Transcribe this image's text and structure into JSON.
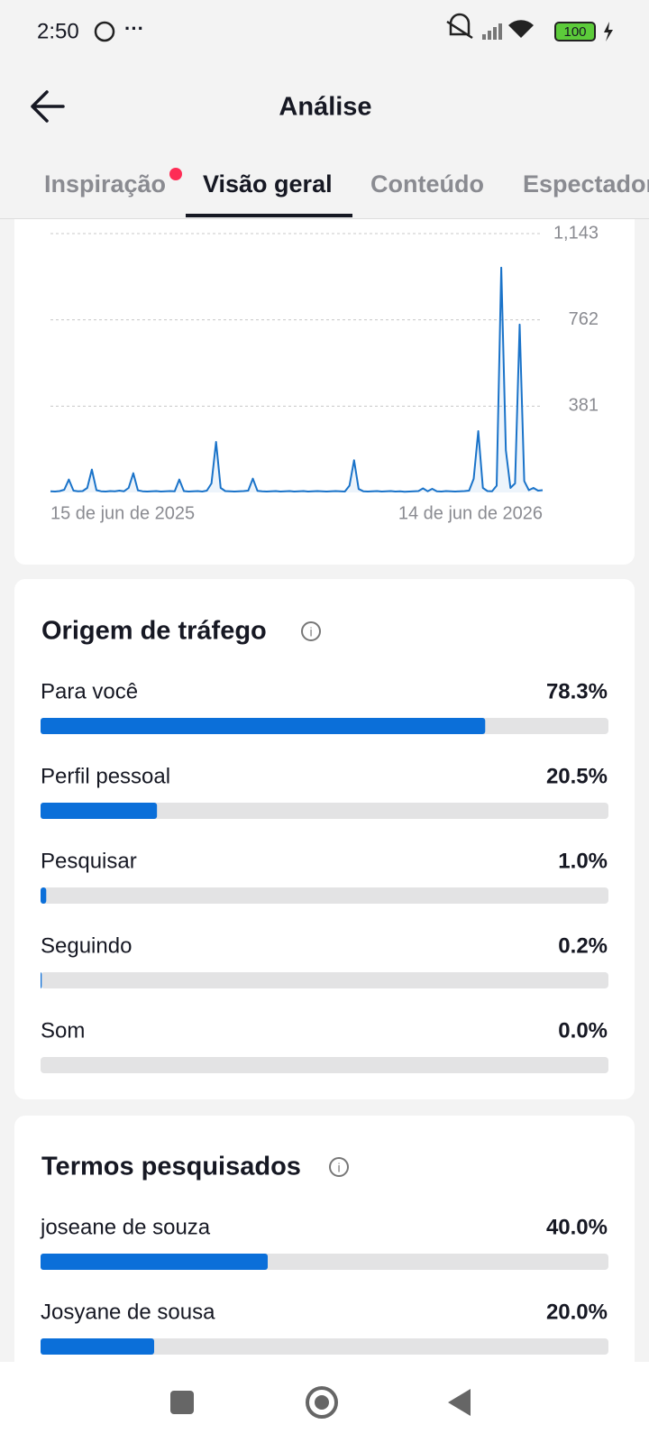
{
  "status_bar": {
    "time": "2:50",
    "battery": "100"
  },
  "header": {
    "title": "Análise"
  },
  "tabs": [
    "Inspiração",
    "Visão geral",
    "Conteúdo",
    "Espectadores"
  ],
  "chart": {
    "type": "line",
    "color": "#1a73c9",
    "ylim": [
      0,
      1143
    ],
    "yticks": [
      381,
      762,
      {
        "value": 1143,
        "label": "1,143"
      }
    ],
    "grid": true,
    "categories": [
      "15 de jun de 2025",
      null,
      null,
      null,
      null,
      null,
      null,
      null,
      null,
      null,
      null,
      null,
      null,
      null,
      null,
      null,
      null,
      null,
      null,
      null,
      null,
      null,
      null,
      null,
      null,
      null,
      null,
      null,
      null,
      null,
      null,
      null,
      null,
      null,
      null,
      null,
      null,
      null,
      null,
      null,
      null,
      null,
      null,
      null,
      null,
      null,
      null,
      null,
      null,
      null,
      null,
      null,
      null,
      null,
      null,
      null,
      null,
      null,
      null,
      null,
      null,
      null,
      null,
      null,
      null,
      null,
      null,
      null,
      null,
      null,
      null,
      null,
      null,
      null,
      null,
      null,
      null,
      null,
      null,
      null,
      null,
      null,
      null,
      null,
      null,
      null,
      null,
      null,
      null,
      null,
      null,
      null,
      null,
      null,
      null,
      null,
      null,
      null,
      null,
      null,
      null,
      null,
      null,
      null,
      null,
      null,
      null,
      "14 de jun de 2026"
    ],
    "values": [
      5,
      4,
      6,
      12,
      57,
      8,
      5,
      6,
      20,
      101,
      10,
      5,
      4,
      6,
      5,
      8,
      5,
      20,
      85,
      9,
      5,
      4,
      5,
      6,
      4,
      5,
      6,
      5,
      57,
      6,
      4,
      5,
      6,
      4,
      8,
      40,
      223,
      20,
      6,
      5,
      4,
      5,
      6,
      8,
      61,
      7,
      5,
      4,
      5,
      6,
      4,
      5,
      6,
      4,
      5,
      6,
      4,
      5,
      6,
      5,
      4,
      5,
      6,
      5,
      4,
      30,
      142,
      15,
      5,
      4,
      5,
      6,
      4,
      5,
      6,
      4,
      5,
      3,
      4,
      5,
      6,
      18,
      5,
      16,
      5,
      4,
      6,
      5,
      4,
      5,
      6,
      8,
      60,
      271,
      20,
      6,
      5,
      30,
      993,
      186,
      20,
      40,
      741,
      50,
      10,
      20,
      8,
      10
    ]
  },
  "traffic_sources": {
    "title": "Origem de tráfego",
    "xlim": [
      0,
      100
    ],
    "items": [
      {
        "label": "Para você",
        "value": 78.3,
        "value_label": "78.3%"
      },
      {
        "label": "Perfil pessoal",
        "value": 20.5,
        "value_label": "20.5%"
      },
      {
        "label": "Pesquisar",
        "value": 1.0,
        "value_label": "1.0%"
      },
      {
        "label": "Seguindo",
        "value": 0.2,
        "value_label": "0.2%"
      },
      {
        "label": "Som",
        "value": 0.0,
        "value_label": "0.0%"
      }
    ]
  },
  "search_terms": {
    "title": "Termos pesquisados",
    "xlim": [
      0,
      100
    ],
    "items": [
      {
        "label": "joseane de souza",
        "value": 40.0,
        "value_label": "40.0%"
      },
      {
        "label": "Josyane de sousa",
        "value": 20.0,
        "value_label": "20.0%"
      }
    ]
  }
}
